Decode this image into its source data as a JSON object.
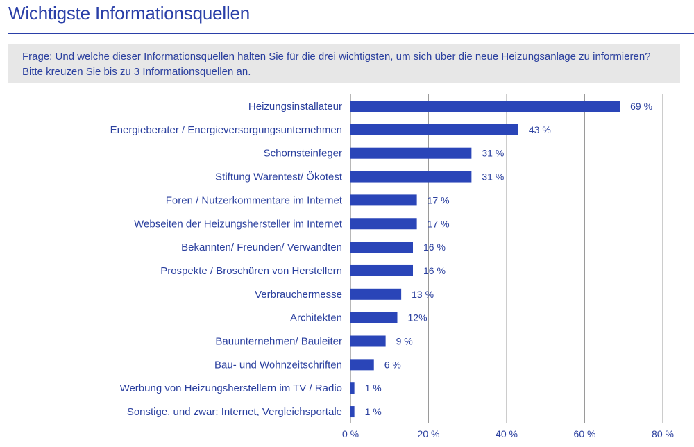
{
  "title": "Wichtigste Informationsquellen",
  "question": {
    "line1": "Frage: Und welche dieser Informationsquellen halten Sie für die drei wichtigsten, um sich über die neue Heizungsanlage zu informieren?",
    "line2": "Bitte kreuzen Sie bis zu 3 Informationsquellen an."
  },
  "colors": {
    "bar": "#2a45b8",
    "text": "#2a3f9e",
    "grid": "#9a9a9a"
  },
  "chart_data": {
    "type": "bar",
    "orientation": "horizontal",
    "categories": [
      "Heizungsinstallateur",
      "Energieberater / Energieversorgungsunternehmen",
      "Schornsteinfeger",
      "Stiftung Warentest/ Ökotest",
      "Foren / Nutzerkommentare im Internet",
      "Webseiten der Heizungshersteller im Internet",
      "Bekannten/ Freunden/ Verwandten",
      "Prospekte / Broschüren von Herstellern",
      "Verbrauchermesse",
      "Architekten",
      "Bauunternehmen/ Bauleiter",
      "Bau- und Wohnzeitschriften",
      "Werbung von Heizungsherstellern im TV / Radio",
      "Sonstige, und zwar: Internet, Vergleichsportale"
    ],
    "values": [
      69,
      43,
      31,
      31,
      17,
      17,
      16,
      16,
      13,
      12,
      9,
      6,
      1,
      1
    ],
    "value_labels": [
      "69 %",
      "43 %",
      "31 %",
      "31 %",
      "17 %",
      "17 %",
      "16 %",
      "16 %",
      "13 %",
      "12%",
      "9 %",
      "6 %",
      "1 %",
      "1 %"
    ],
    "xlim": [
      0,
      80
    ],
    "xticks": [
      0,
      20,
      40,
      60,
      80
    ],
    "xtick_labels": [
      "0 %",
      "20 %",
      "40 %",
      "60 %",
      "80 %"
    ],
    "grid": true,
    "legend": "none"
  }
}
